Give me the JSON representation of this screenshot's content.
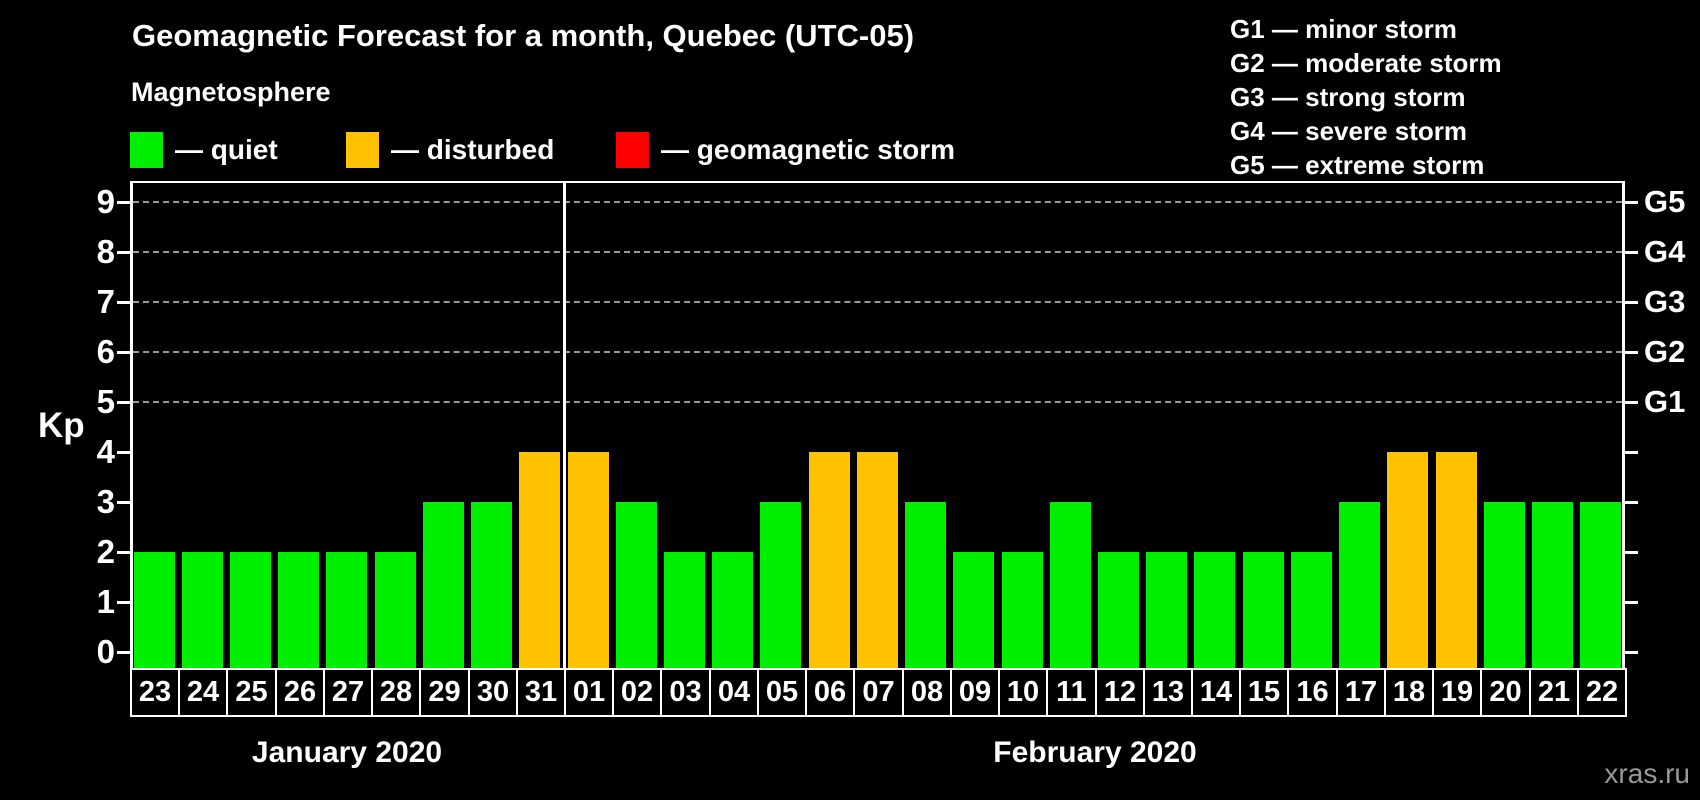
{
  "title": "Geomagnetic Forecast for a month, Quebec (UTC-05)",
  "subtitle": "Magnetosphere",
  "legend": {
    "items": [
      {
        "name": "quiet",
        "label": "— quiet",
        "color": "#00EE00"
      },
      {
        "name": "disturbed",
        "label": "— disturbed",
        "color": "#FFC200"
      },
      {
        "name": "geomagnetic-storm",
        "label": "— geomagnetic storm",
        "color": "#FF0000"
      }
    ]
  },
  "storm_scale_legend": [
    "G1 — minor storm",
    "G2 — moderate storm",
    "G3 — strong storm",
    "G4 — severe storm",
    "G5 — extreme storm"
  ],
  "watermark": "xras.ru",
  "chart_data": {
    "type": "bar",
    "ylabel": "Kp",
    "ylim": [
      0,
      9
    ],
    "yticks": [
      0,
      1,
      2,
      3,
      4,
      5,
      6,
      7,
      8,
      9
    ],
    "grid_levels": [
      5,
      6,
      7,
      8,
      9
    ],
    "right_axis_labels": [
      {
        "label": "G5",
        "kp": 9
      },
      {
        "label": "G4",
        "kp": 8
      },
      {
        "label": "G3",
        "kp": 7
      },
      {
        "label": "G2",
        "kp": 6
      },
      {
        "label": "G1",
        "kp": 5
      }
    ],
    "months": [
      {
        "label": "January 2020",
        "days": 9
      },
      {
        "label": "February 2020",
        "days": 22
      }
    ],
    "categories": [
      "23",
      "24",
      "25",
      "26",
      "27",
      "28",
      "29",
      "30",
      "31",
      "01",
      "02",
      "03",
      "04",
      "05",
      "06",
      "07",
      "08",
      "09",
      "10",
      "11",
      "12",
      "13",
      "14",
      "15",
      "16",
      "17",
      "18",
      "19",
      "20",
      "21",
      "22"
    ],
    "values": [
      2,
      2,
      2,
      2,
      2,
      2,
      3,
      3,
      4,
      4,
      3,
      2,
      2,
      3,
      4,
      4,
      3,
      2,
      2,
      3,
      2,
      2,
      2,
      2,
      2,
      3,
      4,
      4,
      3,
      3,
      3
    ],
    "color_rules": {
      "quiet_max_kp": 3,
      "disturbed_kp": 4,
      "storm_min_kp": 5
    },
    "colors": {
      "quiet": "#00EE00",
      "disturbed": "#FFC200",
      "storm": "#FF0000",
      "grid": "#999999"
    }
  }
}
